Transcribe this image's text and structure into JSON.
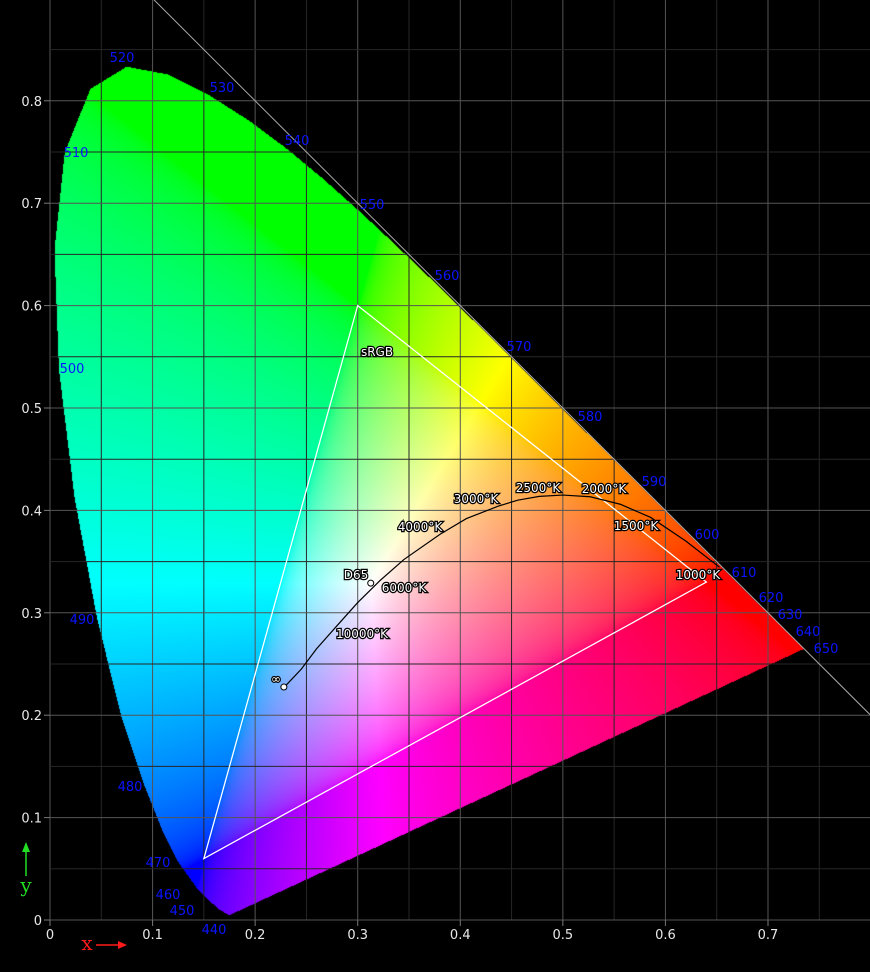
{
  "diagram": {
    "x_axis": {
      "label": "x",
      "color": "#ff1a1a",
      "ticks": [
        "0",
        "0.1",
        "0.2",
        "0.3",
        "0.4",
        "0.5",
        "0.6",
        "0.7"
      ]
    },
    "y_axis": {
      "label": "y",
      "color": "#22dd22",
      "ticks": [
        "0",
        "0.1",
        "0.2",
        "0.3",
        "0.4",
        "0.5",
        "0.6",
        "0.7",
        "0.8"
      ]
    },
    "spectral_locus_labels": [
      "440",
      "450",
      "460",
      "470",
      "480",
      "490",
      "500",
      "510",
      "520",
      "530",
      "540",
      "550",
      "560",
      "570",
      "580",
      "590",
      "600",
      "610",
      "620",
      "630",
      "640",
      "650"
    ],
    "gamut": {
      "label": "sRGB",
      "red": [
        0.64,
        0.33
      ],
      "green": [
        0.3,
        0.6
      ],
      "blue": [
        0.15,
        0.06
      ]
    },
    "white_point": {
      "label": "D65",
      "x": 0.3127,
      "y": 0.329
    },
    "planckian_locus": {
      "labels": [
        "1000°K",
        "1500°K",
        "2000°K",
        "2500°K",
        "3000°K",
        "4000°K",
        "6000°K",
        "10000°K"
      ],
      "infinity_label": "∞"
    },
    "colors": {
      "wavelength_label": "#0a14ff",
      "grid_major": "#555555",
      "grid_minor": "#262626",
      "gamut_outline": "#ffffff",
      "planck_curve": "#000000"
    }
  }
}
